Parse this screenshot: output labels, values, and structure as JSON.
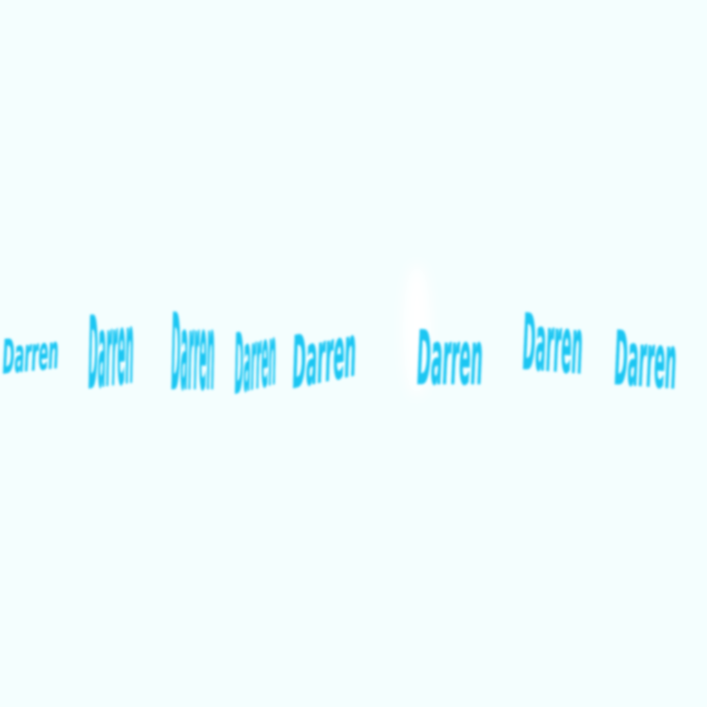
{
  "colors": {
    "background": "#f4fefe",
    "ink": "#1cc6f2",
    "ink_soft": "#3ad2fa",
    "highlight": "#ffffff"
  },
  "signatures": [
    {
      "text": "Darren"
    },
    {
      "text": "Darren"
    },
    {
      "text": "Darren"
    },
    {
      "text": "Darren"
    },
    {
      "text": "Darren"
    },
    {
      "text": "Darren"
    },
    {
      "text": "Darren"
    },
    {
      "text": "Darren"
    }
  ]
}
